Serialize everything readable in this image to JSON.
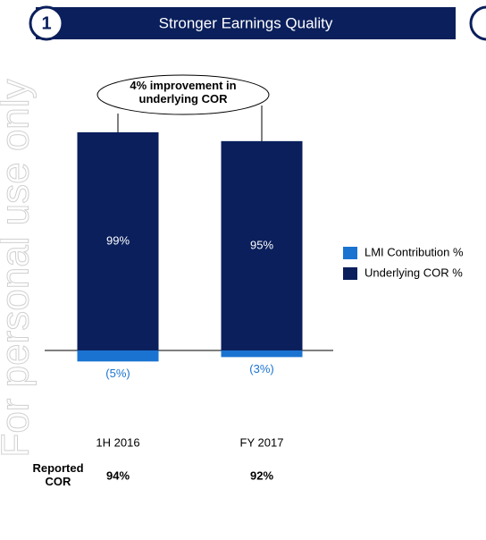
{
  "watermark": "For personal use only",
  "chart_data": {
    "type": "bar",
    "stacked": true,
    "section_number": "1",
    "title": "Stronger Earnings Quality",
    "annotation": "4% improvement in underlying COR",
    "categories": [
      "1H 2016",
      "FY 2017"
    ],
    "series": [
      {
        "name": "LMI Contribution %",
        "color": "#1a73d1",
        "values": [
          -5,
          -3
        ],
        "value_labels": [
          "(5%)",
          "(3%)"
        ]
      },
      {
        "name": "Underlying COR %",
        "color": "#0a1f5c",
        "values": [
          99,
          95
        ],
        "value_labels": [
          "99%",
          "95%"
        ]
      }
    ],
    "reported": {
      "label": "Reported COR",
      "values": [
        94,
        92
      ],
      "value_labels": [
        "94%",
        "92%"
      ]
    },
    "ylim": [
      -10,
      100
    ]
  }
}
